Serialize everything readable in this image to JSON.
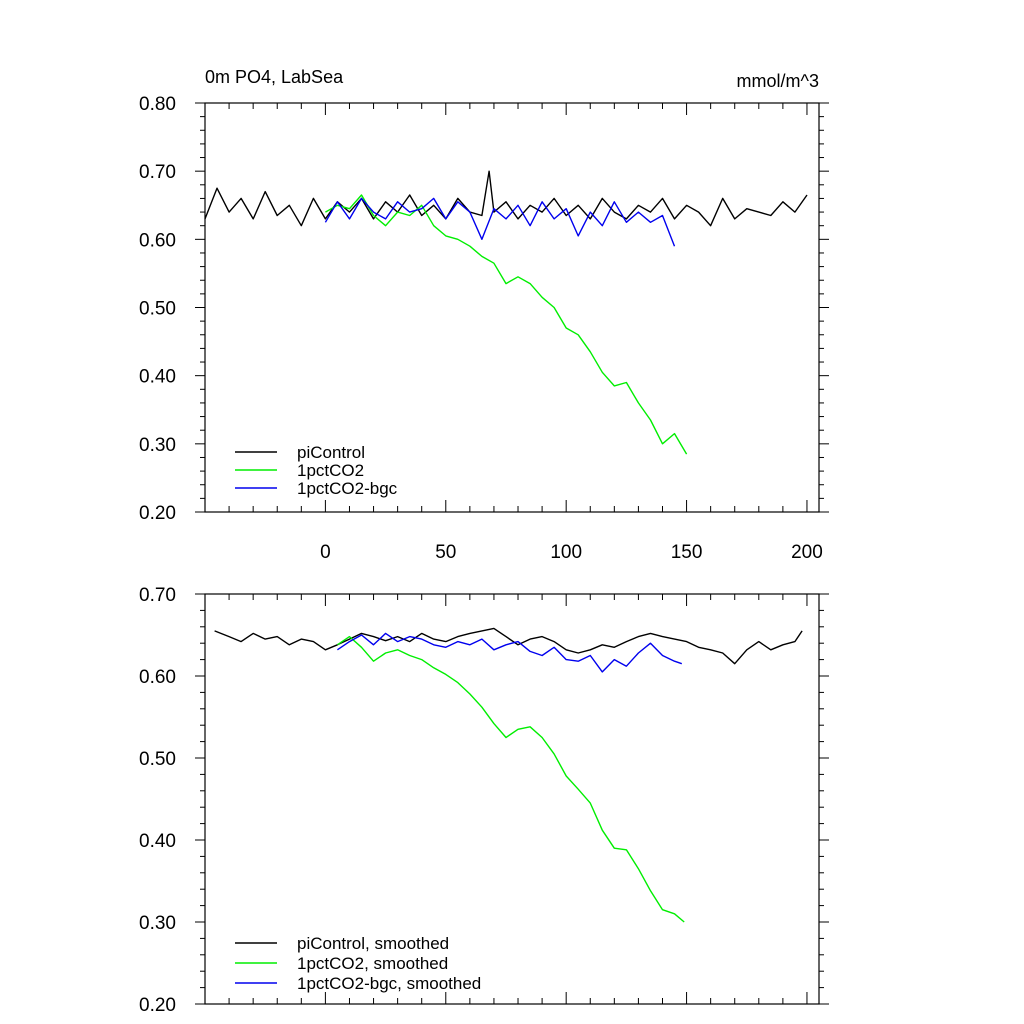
{
  "chart_data": [
    {
      "type": "line",
      "title_left": "0m PO4, LabSea",
      "title_right": "mmol/m^3",
      "xlim": [
        -50,
        205
      ],
      "ylim": [
        0.2,
        0.8
      ],
      "x_ticks": [
        0,
        50,
        100,
        150,
        200
      ],
      "x_tick_labels": [
        "0",
        "50",
        "100",
        "150",
        "200"
      ],
      "y_ticks": [
        0.2,
        0.3,
        0.4,
        0.5,
        0.6,
        0.7,
        0.8
      ],
      "y_tick_labels": [
        "0.20",
        "0.30",
        "0.40",
        "0.50",
        "0.60",
        "0.70",
        "0.80"
      ],
      "legend_position": "bottom-left",
      "series": [
        {
          "name": "piControl",
          "color": "#000000",
          "x": [
            -50,
            -45,
            -40,
            -35,
            -30,
            -25,
            -20,
            -15,
            -10,
            -5,
            0,
            5,
            10,
            15,
            20,
            25,
            30,
            35,
            40,
            45,
            50,
            55,
            60,
            65,
            68,
            70,
            75,
            80,
            85,
            90,
            95,
            100,
            105,
            110,
            115,
            120,
            125,
            130,
            135,
            140,
            145,
            150,
            155,
            160,
            165,
            170,
            175,
            180,
            185,
            190,
            195,
            200
          ],
          "values": [
            0.63,
            0.675,
            0.64,
            0.66,
            0.63,
            0.67,
            0.635,
            0.65,
            0.62,
            0.66,
            0.63,
            0.655,
            0.64,
            0.66,
            0.63,
            0.655,
            0.64,
            0.665,
            0.635,
            0.65,
            0.63,
            0.66,
            0.64,
            0.635,
            0.7,
            0.64,
            0.655,
            0.63,
            0.65,
            0.64,
            0.66,
            0.635,
            0.65,
            0.63,
            0.66,
            0.64,
            0.63,
            0.65,
            0.64,
            0.66,
            0.63,
            0.65,
            0.64,
            0.62,
            0.66,
            0.63,
            0.645,
            0.64,
            0.635,
            0.655,
            0.64,
            0.665
          ]
        },
        {
          "name": "1pctCO2",
          "color": "#00ee00",
          "x": [
            0,
            5,
            10,
            15,
            20,
            25,
            30,
            35,
            40,
            45,
            50,
            55,
            60,
            65,
            70,
            75,
            80,
            85,
            90,
            95,
            100,
            105,
            110,
            115,
            120,
            125,
            130,
            135,
            140,
            145,
            150
          ],
          "values": [
            0.64,
            0.65,
            0.645,
            0.665,
            0.635,
            0.62,
            0.64,
            0.635,
            0.65,
            0.62,
            0.605,
            0.6,
            0.59,
            0.575,
            0.565,
            0.535,
            0.545,
            0.535,
            0.515,
            0.5,
            0.47,
            0.46,
            0.435,
            0.405,
            0.385,
            0.39,
            0.36,
            0.335,
            0.3,
            0.315,
            0.285
          ]
        },
        {
          "name": "1pctCO2-bgc",
          "color": "#0000ee",
          "x": [
            0,
            5,
            10,
            15,
            20,
            25,
            30,
            35,
            40,
            45,
            50,
            55,
            60,
            65,
            70,
            75,
            80,
            85,
            90,
            95,
            100,
            105,
            110,
            115,
            120,
            125,
            130,
            135,
            140,
            145
          ],
          "values": [
            0.625,
            0.655,
            0.63,
            0.66,
            0.64,
            0.63,
            0.655,
            0.64,
            0.645,
            0.66,
            0.63,
            0.655,
            0.64,
            0.6,
            0.645,
            0.63,
            0.65,
            0.62,
            0.655,
            0.63,
            0.645,
            0.605,
            0.64,
            0.62,
            0.655,
            0.625,
            0.64,
            0.625,
            0.635,
            0.59
          ]
        }
      ]
    },
    {
      "type": "line",
      "xlim": [
        -50,
        205
      ],
      "ylim": [
        0.2,
        0.7
      ],
      "x_ticks": [
        0,
        50,
        100,
        150,
        200
      ],
      "y_ticks": [
        0.2,
        0.3,
        0.4,
        0.5,
        0.6,
        0.7
      ],
      "y_tick_labels": [
        "0.20",
        "0.30",
        "0.40",
        "0.50",
        "0.60",
        "0.70"
      ],
      "legend_position": "bottom-left",
      "series": [
        {
          "name": "piControl, smoothed",
          "color": "#000000",
          "x": [
            -46,
            -40,
            -35,
            -30,
            -25,
            -20,
            -15,
            -10,
            -5,
            0,
            5,
            10,
            15,
            20,
            25,
            30,
            35,
            40,
            45,
            50,
            55,
            60,
            65,
            70,
            75,
            80,
            85,
            90,
            95,
            100,
            105,
            110,
            115,
            120,
            125,
            130,
            135,
            140,
            145,
            150,
            155,
            160,
            165,
            170,
            175,
            180,
            185,
            190,
            195,
            198
          ],
          "values": [
            0.655,
            0.648,
            0.642,
            0.652,
            0.645,
            0.648,
            0.638,
            0.645,
            0.642,
            0.632,
            0.638,
            0.645,
            0.652,
            0.648,
            0.643,
            0.648,
            0.642,
            0.652,
            0.645,
            0.642,
            0.648,
            0.652,
            0.655,
            0.658,
            0.648,
            0.638,
            0.645,
            0.648,
            0.642,
            0.632,
            0.628,
            0.632,
            0.638,
            0.635,
            0.642,
            0.648,
            0.652,
            0.648,
            0.645,
            0.642,
            0.635,
            0.632,
            0.628,
            0.615,
            0.632,
            0.642,
            0.632,
            0.638,
            0.642,
            0.655
          ]
        },
        {
          "name": "1pctCO2, smoothed",
          "color": "#00ee00",
          "x": [
            5,
            10,
            15,
            20,
            25,
            30,
            35,
            40,
            45,
            50,
            55,
            60,
            65,
            70,
            75,
            80,
            85,
            90,
            95,
            100,
            105,
            110,
            115,
            120,
            125,
            130,
            135,
            140,
            145,
            149
          ],
          "values": [
            0.638,
            0.648,
            0.635,
            0.618,
            0.628,
            0.632,
            0.625,
            0.62,
            0.61,
            0.602,
            0.592,
            0.578,
            0.562,
            0.542,
            0.525,
            0.535,
            0.538,
            0.525,
            0.505,
            0.478,
            0.462,
            0.445,
            0.412,
            0.39,
            0.388,
            0.365,
            0.338,
            0.315,
            0.31,
            0.3
          ]
        },
        {
          "name": "1pctCO2-bgc, smoothed",
          "color": "#0000ee",
          "x": [
            5,
            10,
            15,
            20,
            25,
            30,
            35,
            40,
            45,
            50,
            55,
            60,
            65,
            70,
            75,
            80,
            85,
            90,
            95,
            100,
            105,
            110,
            115,
            120,
            125,
            130,
            135,
            140,
            145,
            148
          ],
          "values": [
            0.632,
            0.642,
            0.65,
            0.638,
            0.652,
            0.642,
            0.648,
            0.645,
            0.638,
            0.635,
            0.642,
            0.638,
            0.645,
            0.632,
            0.638,
            0.642,
            0.63,
            0.625,
            0.635,
            0.62,
            0.618,
            0.625,
            0.605,
            0.62,
            0.612,
            0.628,
            0.64,
            0.625,
            0.618,
            0.615
          ]
        }
      ]
    }
  ]
}
